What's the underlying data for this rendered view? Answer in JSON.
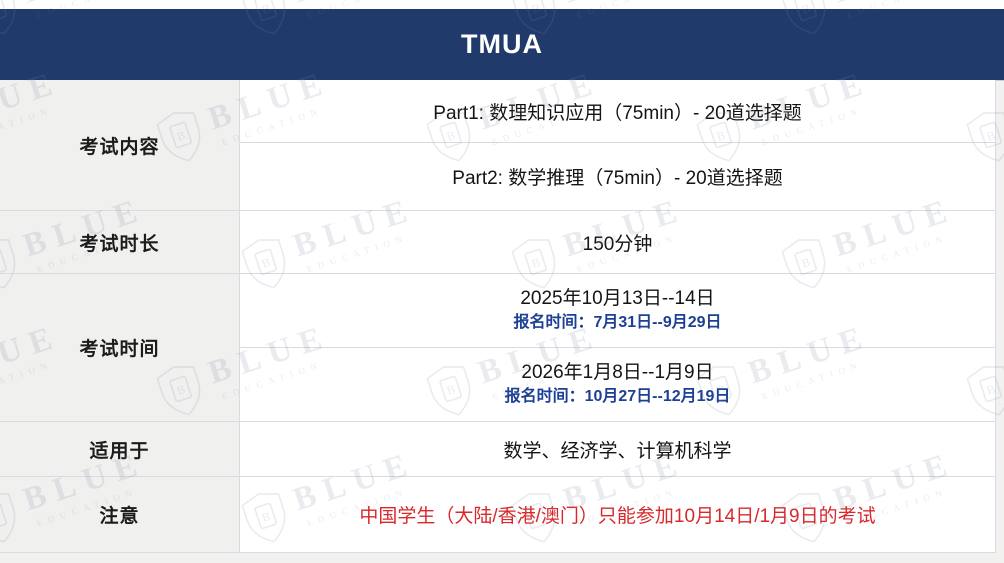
{
  "header": {
    "title": "TMUA"
  },
  "table": {
    "rows": [
      {
        "label": "考试内容",
        "contents": [
          "Part1: 数理知识应用（75min）- 20道选择题",
          "Part2: 数学推理（75min）- 20道选择题"
        ]
      },
      {
        "label": "考试时长",
        "contents": [
          "150分钟"
        ]
      },
      {
        "label": "考试时间",
        "sessions": [
          {
            "date": "2025年10月13日--14日",
            "registration": "报名时间：7月31日--9月29日"
          },
          {
            "date": "2026年1月8日--1月9日",
            "registration": "报名时间：10月27日--12月19日"
          }
        ]
      },
      {
        "label": "适用于",
        "contents": [
          "数学、经济学、计算机科学"
        ]
      },
      {
        "label": "注意",
        "contents": [
          "中国学生（大陆/香港/澳门）只能参加10月14日/1月9日的考试"
        ]
      }
    ]
  },
  "watermark": {
    "brand": "BLUE",
    "subtitle": "EDUCATION",
    "monogram": "B"
  },
  "colors": {
    "header_navy": "#1f3a6b",
    "registration_blue": "#1e4094",
    "note_red": "#d9282b",
    "label_bg": "#f0f0ee",
    "border": "#d8dce2"
  }
}
